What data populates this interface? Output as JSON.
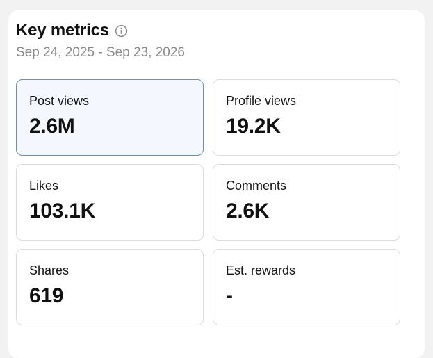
{
  "header": {
    "title": "Key metrics",
    "date_range": "Sep 24, 2025 - Sep 23, 2026"
  },
  "icons": {
    "info": "info-circle-icon"
  },
  "metrics": [
    {
      "label": "Post views",
      "value": "2.6M",
      "selected": true
    },
    {
      "label": "Profile views",
      "value": "19.2K",
      "selected": false
    },
    {
      "label": "Likes",
      "value": "103.1K",
      "selected": false
    },
    {
      "label": "Comments",
      "value": "2.6K",
      "selected": false
    },
    {
      "label": "Shares",
      "value": "619",
      "selected": false
    },
    {
      "label": "Est. rewards",
      "value": "-",
      "selected": false
    }
  ],
  "colors": {
    "selected_bg": "#f4f8fe",
    "selected_border": "#6a8fbf",
    "muted_text": "#8a8a8a"
  }
}
